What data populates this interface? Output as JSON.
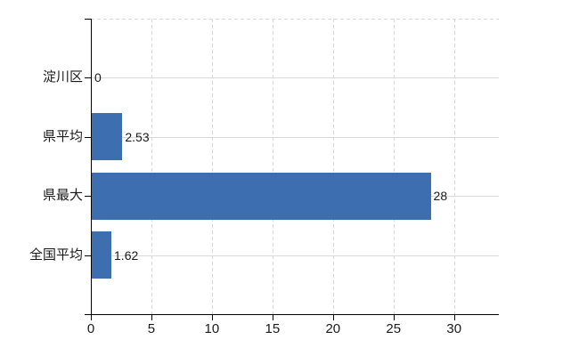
{
  "chart_data": {
    "type": "bar",
    "orientation": "horizontal",
    "title": "",
    "xlabel": "",
    "ylabel": "",
    "categories": [
      "淀川区",
      "県平均",
      "県最大",
      "全国平均"
    ],
    "values": [
      0,
      2.53,
      28,
      1.62
    ],
    "value_labels": [
      "0",
      "2.53",
      "28",
      "1.62"
    ],
    "x_ticks": [
      0,
      5,
      10,
      15,
      20,
      25,
      30
    ],
    "xlim": [
      0,
      33.7
    ],
    "grid": true,
    "gridline_style": {
      "vertical": "dashed",
      "horizontal": "solid",
      "plot_top_border": "dashed"
    },
    "legend_position": "none",
    "colors": {
      "bar": "#3c6eb0",
      "grid": "#d9d9d9",
      "axis": "#000000",
      "text": "#1a1a1a",
      "background": "#ffffff"
    }
  }
}
